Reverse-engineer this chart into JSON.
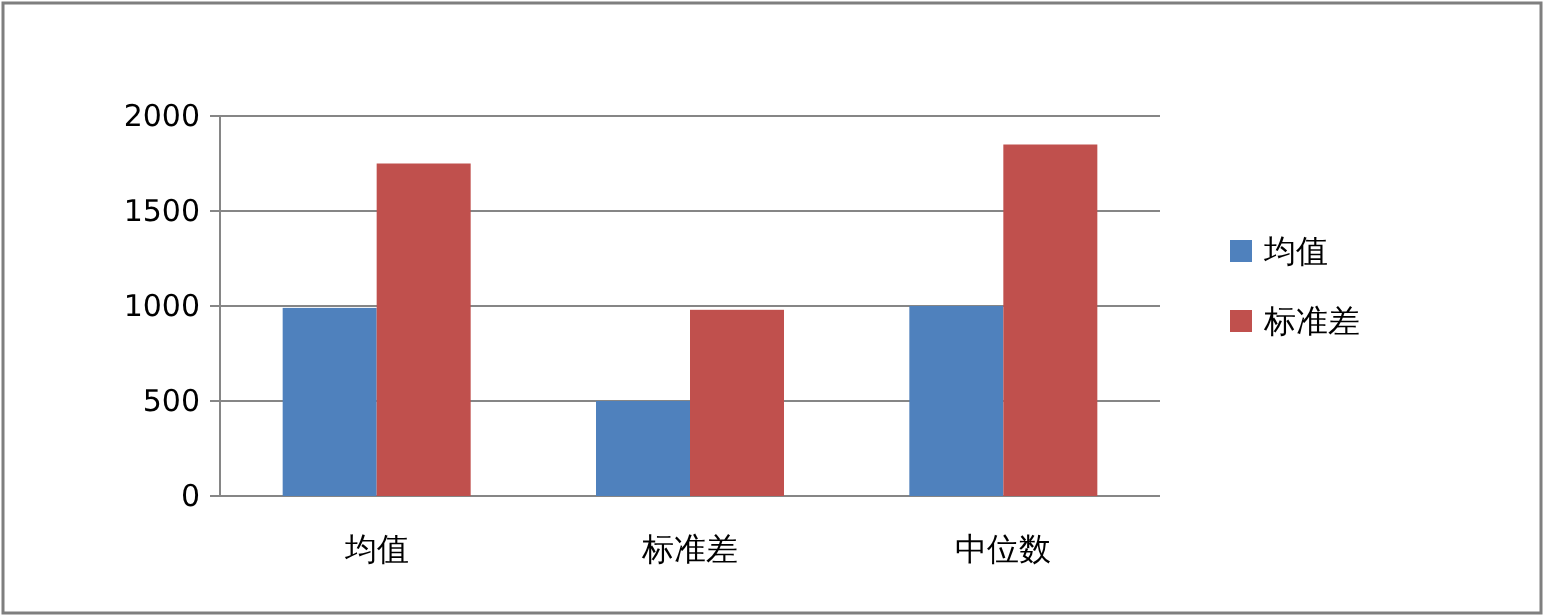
{
  "chart_data": {
    "type": "bar",
    "categories": [
      "均值",
      "标准差",
      "中位数"
    ],
    "series": [
      {
        "name": "均值",
        "color": "#4f81bd",
        "values": [
          990,
          500,
          1000
        ]
      },
      {
        "name": "标准差",
        "color": "#c0504d",
        "values": [
          1750,
          980,
          1850
        ]
      }
    ],
    "ylim": [
      0,
      2000
    ],
    "yticks": [
      0,
      500,
      1000,
      1500,
      2000
    ],
    "grid": "y",
    "legend": "right"
  }
}
